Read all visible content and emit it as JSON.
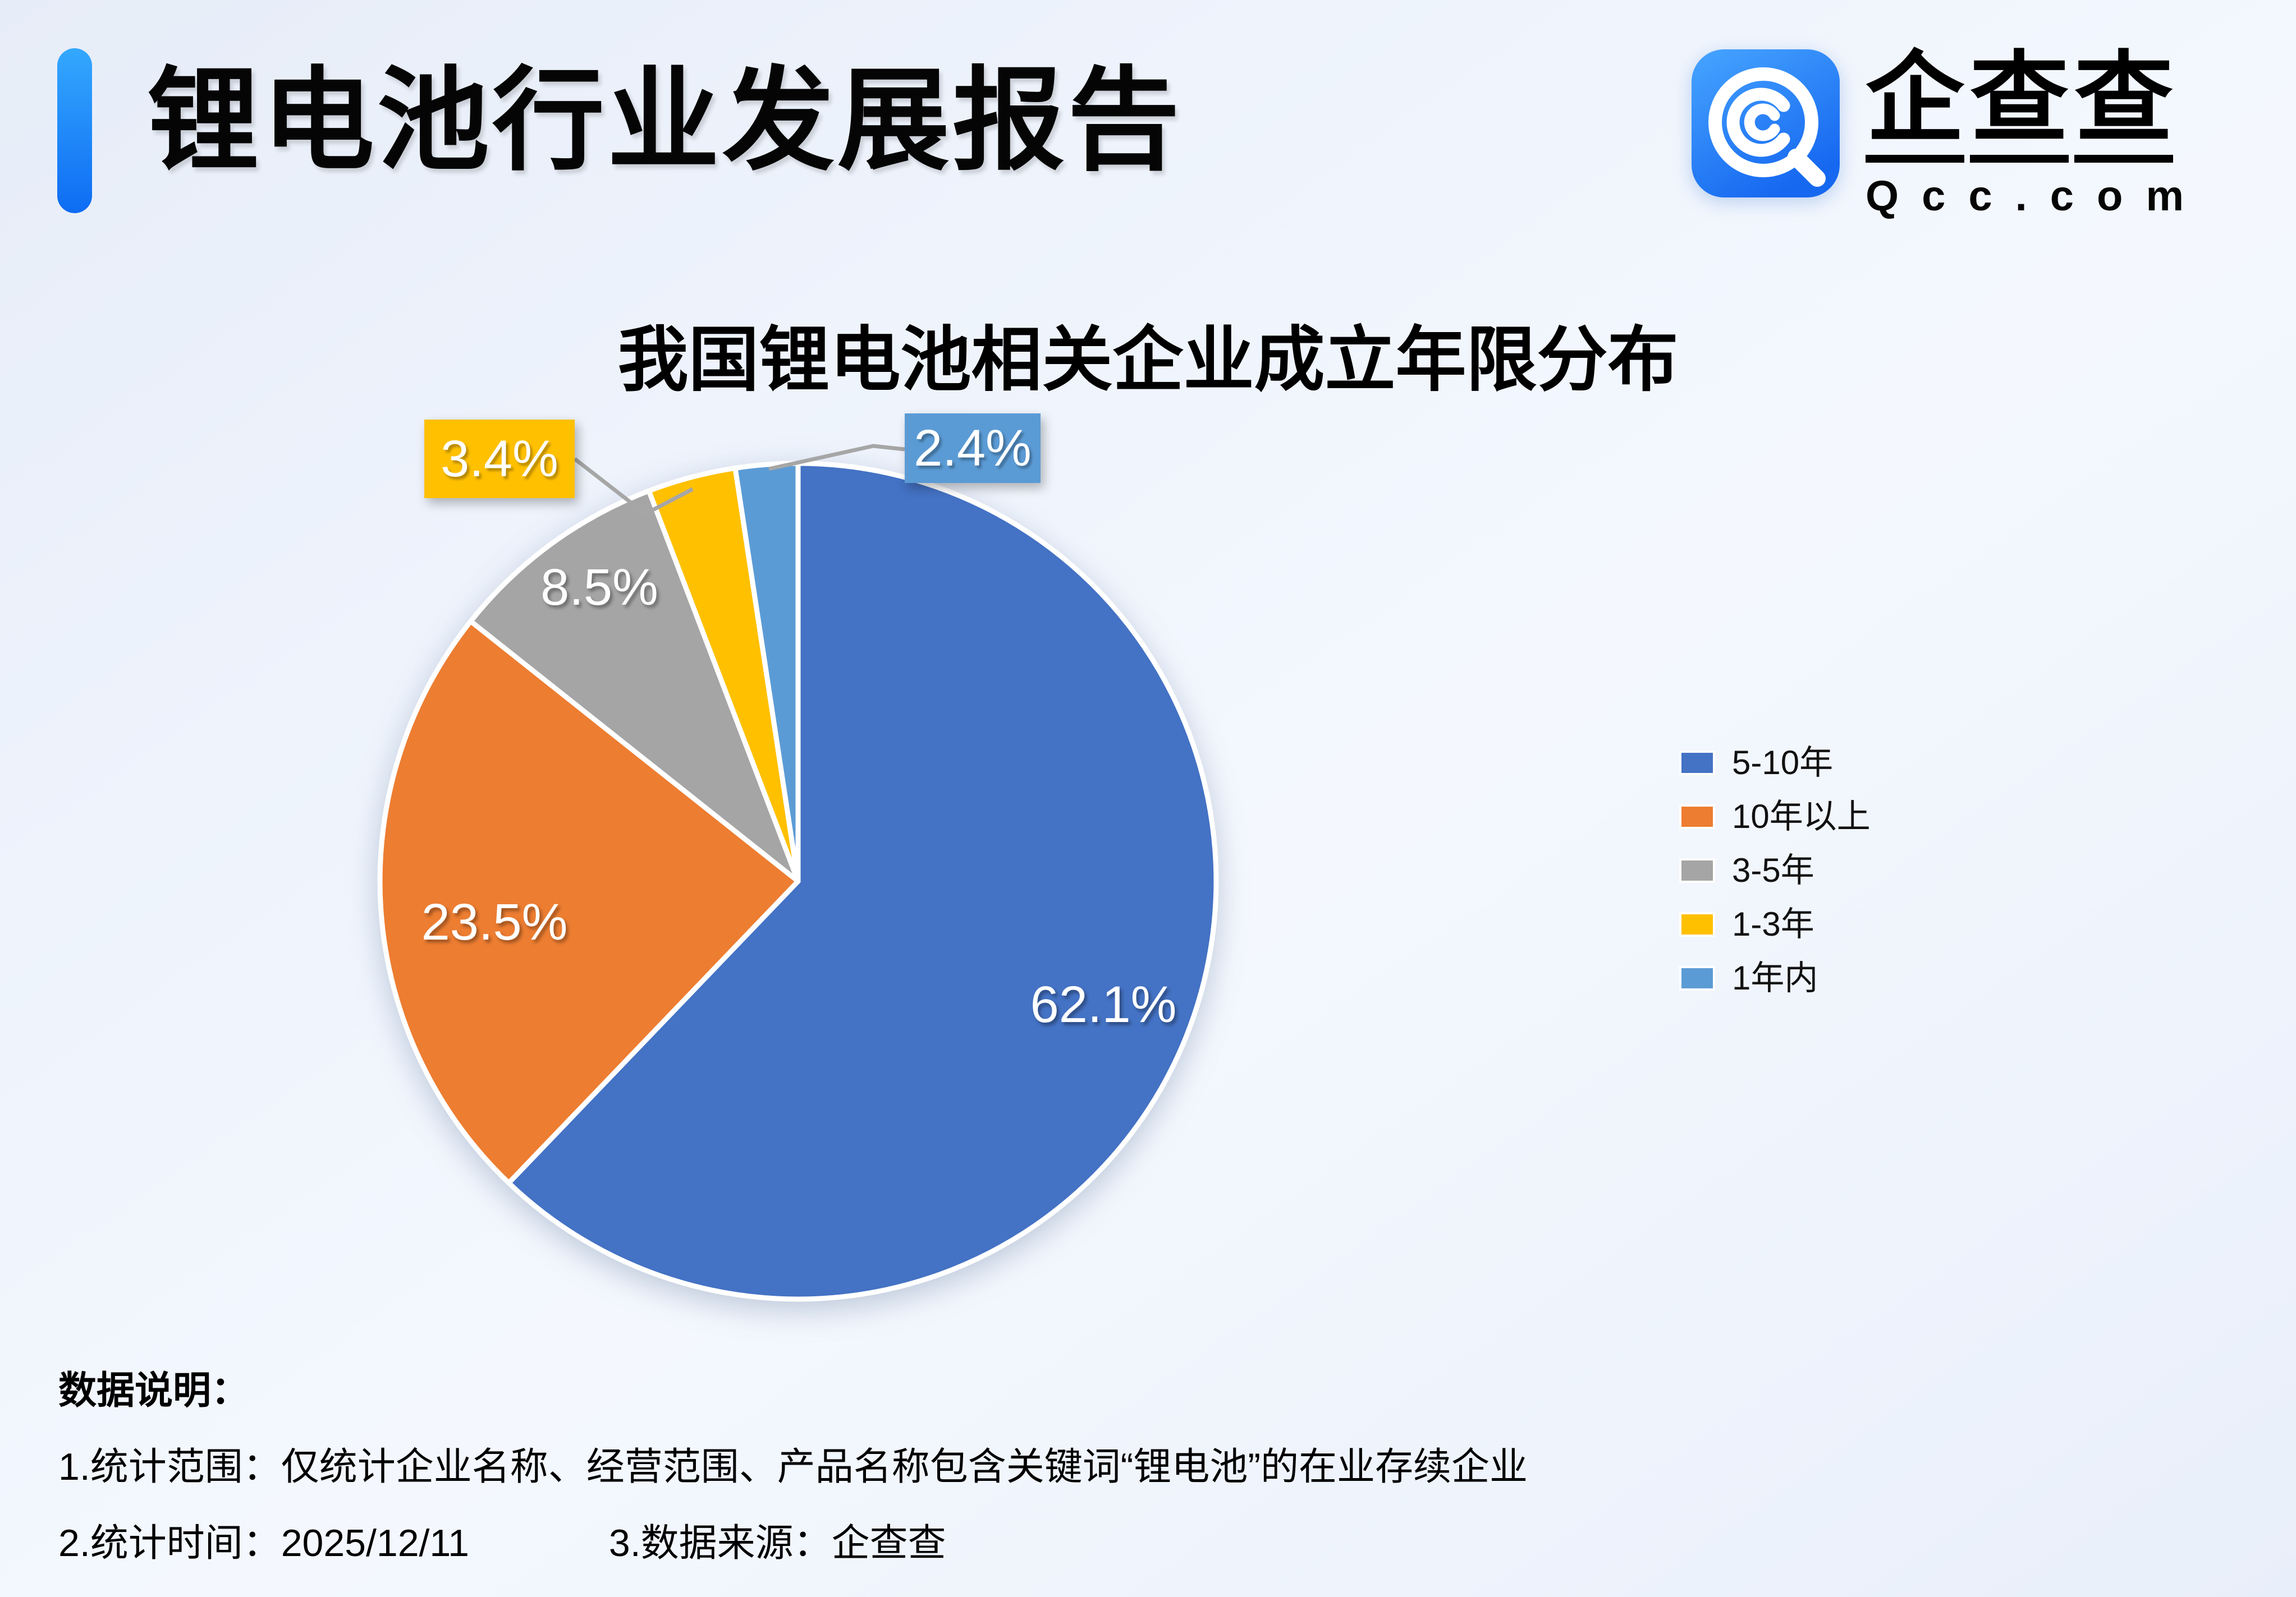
{
  "header": {
    "title": "锂电池行业发展报告",
    "accent_color": "#1677F2"
  },
  "logo": {
    "icon": "qcc-logo-icon",
    "brand_char_1": "企",
    "brand_char_2": "查",
    "brand_char_3": "查",
    "domain": "Qcc.com",
    "icon_gradient": [
      "#47A5FF",
      "#1668F0"
    ]
  },
  "chart_data": {
    "type": "pie",
    "title": "我国锂电池相关企业成立年限分布",
    "categories": [
      "5-10年",
      "10年以上",
      "3-5年",
      "1-3年",
      "1年内"
    ],
    "values": [
      62.1,
      23.5,
      8.5,
      3.4,
      2.4
    ],
    "labels": [
      "62.1%",
      "23.5%",
      "8.5%",
      "3.4%",
      "2.4%"
    ],
    "colors": [
      "#4472C4",
      "#ED7D31",
      "#A5A5A5",
      "#FFC000",
      "#5B9BD5"
    ],
    "unit": "%",
    "start_angle_deg": 0,
    "direction": "clockwise",
    "legend_position": "right",
    "label_placement": {
      "inside": [
        "5-10年",
        "10年以上",
        "3-5年"
      ],
      "outside_boxed": [
        "1-3年",
        "1年内"
      ]
    },
    "leader_line_color": "#A6A6A6"
  },
  "legend": {
    "items": [
      {
        "label": "5-10年",
        "color": "#4472C4"
      },
      {
        "label": "10年以上",
        "color": "#ED7D31"
      },
      {
        "label": "3-5年",
        "color": "#A5A5A5"
      },
      {
        "label": "1-3年",
        "color": "#FFC000"
      },
      {
        "label": "1年内",
        "color": "#5B9BD5"
      }
    ]
  },
  "footnotes": {
    "heading": "数据说明：",
    "line1": "1.统计范围：仅统计企业名称、经营范围、产品名称包含关键词“锂电池”的在业存续企业",
    "line2_left": "2.统计时间：2025/12/11",
    "line2_right": "3.数据来源：企查查"
  }
}
